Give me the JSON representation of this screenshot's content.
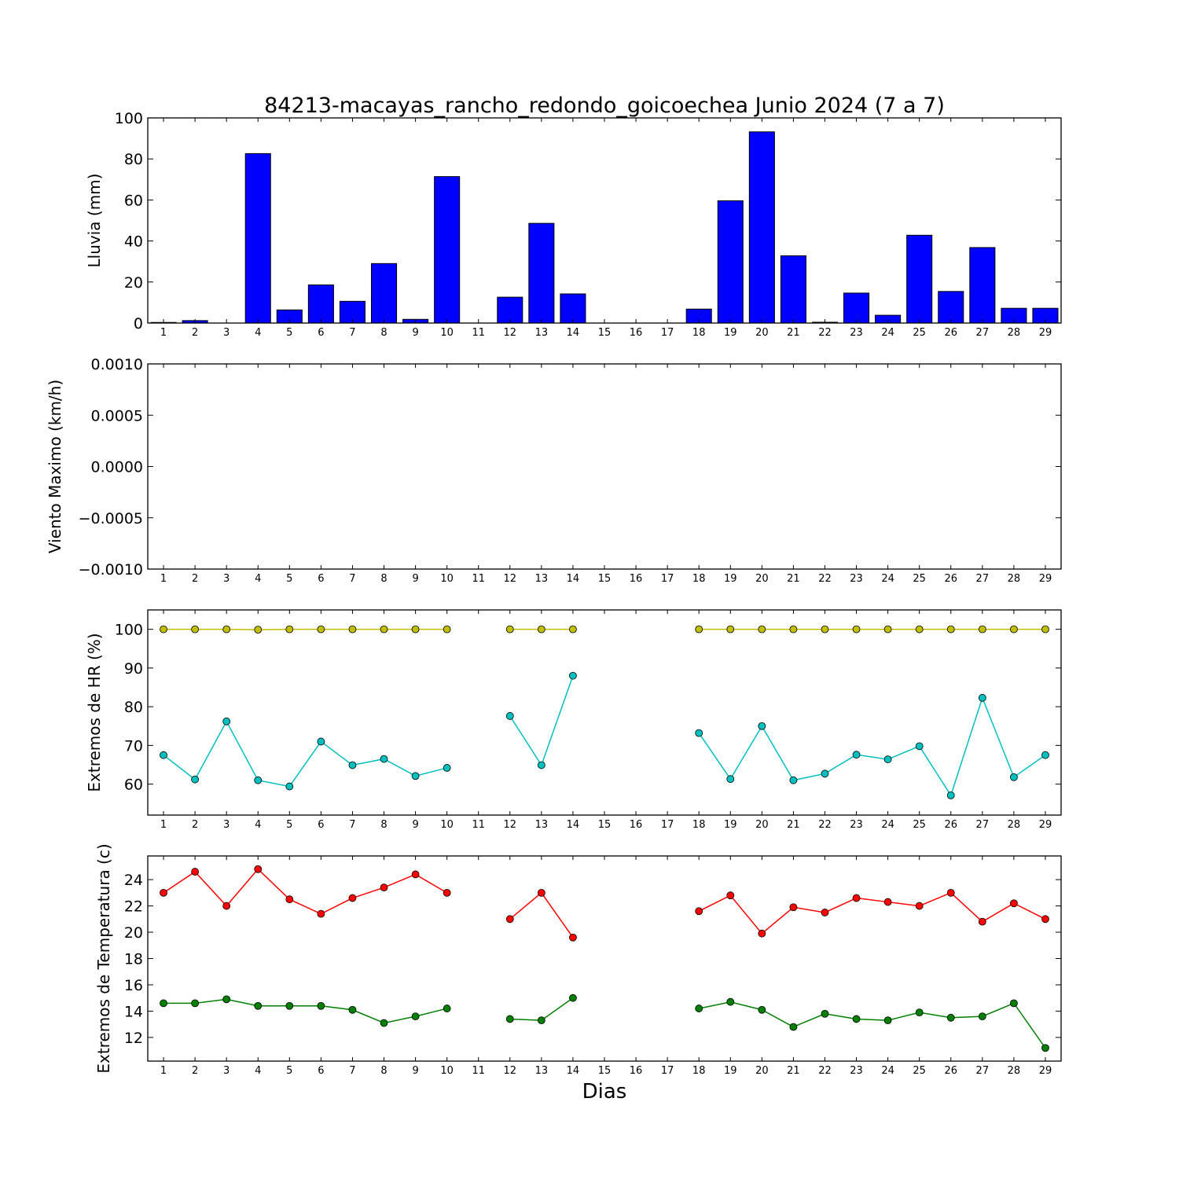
{
  "chart_data": [
    {
      "type": "bar",
      "title": "84213-macayas_rancho_redondo_goicoechea Junio 2024  (7 a 7)",
      "ylabel": "Lluvia (mm)",
      "xlabel": "",
      "categories": [
        "1",
        "2",
        "3",
        "4",
        "5",
        "6",
        "7",
        "8",
        "9",
        "10",
        "11",
        "12",
        "13",
        "14",
        "15",
        "16",
        "17",
        "18",
        "19",
        "20",
        "21",
        "22",
        "23",
        "24",
        "25",
        "26",
        "27",
        "28",
        "29"
      ],
      "values": [
        0.3,
        1.2,
        0,
        82.6,
        6.4,
        18.6,
        10.6,
        29.0,
        1.8,
        71.4,
        0,
        12.6,
        48.6,
        14.2,
        0,
        0,
        0,
        6.8,
        59.6,
        93.2,
        32.8,
        0.4,
        14.6,
        3.8,
        42.8,
        15.4,
        36.8,
        7.2,
        7.2
      ],
      "ylim": [
        0,
        100
      ],
      "yticks": [
        "0",
        "20",
        "40",
        "60",
        "80",
        "100"
      ],
      "color": "#0000ff"
    },
    {
      "type": "line",
      "ylabel": "Viento Maximo (km/h)",
      "categories": [
        "1",
        "2",
        "3",
        "4",
        "5",
        "6",
        "7",
        "8",
        "9",
        "10",
        "11",
        "12",
        "13",
        "14",
        "15",
        "16",
        "17",
        "18",
        "19",
        "20",
        "21",
        "22",
        "23",
        "24",
        "25",
        "26",
        "27",
        "28",
        "29"
      ],
      "series": [],
      "ylim": [
        -0.001,
        0.001
      ],
      "yticks": [
        "−0.0010",
        "−0.0005",
        "0.0000",
        "0.0005",
        "0.0010"
      ]
    },
    {
      "type": "line",
      "ylabel": "Extremos de HR (%)",
      "categories": [
        "1",
        "2",
        "3",
        "4",
        "5",
        "6",
        "7",
        "8",
        "9",
        "10",
        "11",
        "12",
        "13",
        "14",
        "15",
        "16",
        "17",
        "18",
        "19",
        "20",
        "21",
        "22",
        "23",
        "24",
        "25",
        "26",
        "27",
        "28",
        "29"
      ],
      "ylim": [
        52,
        105
      ],
      "yticks": [
        "60",
        "70",
        "80",
        "90",
        "100"
      ],
      "series": [
        {
          "color": "#bfbf00",
          "values": [
            100,
            100,
            100,
            99.9,
            100,
            100,
            100,
            100,
            100,
            100,
            null,
            100,
            100,
            100,
            null,
            null,
            null,
            100,
            100,
            100,
            100,
            100,
            100,
            100,
            100,
            100,
            100,
            100,
            100
          ]
        },
        {
          "color": "#00bfbf",
          "values": [
            67.5,
            61.2,
            76.2,
            61.0,
            59.4,
            71.0,
            64.9,
            66.5,
            62.1,
            64.2,
            null,
            77.6,
            64.9,
            88.0,
            null,
            null,
            null,
            73.2,
            61.3,
            75.0,
            61.0,
            62.7,
            67.6,
            66.4,
            69.8,
            57.1,
            82.3,
            61.8,
            67.5
          ]
        }
      ]
    },
    {
      "type": "line",
      "ylabel": "Extremos de Temperatura (c)",
      "xlabel": "Dias",
      "categories": [
        "1",
        "2",
        "3",
        "4",
        "5",
        "6",
        "7",
        "8",
        "9",
        "10",
        "11",
        "12",
        "13",
        "14",
        "15",
        "16",
        "17",
        "18",
        "19",
        "20",
        "21",
        "22",
        "23",
        "24",
        "25",
        "26",
        "27",
        "28",
        "29"
      ],
      "ylim": [
        10.2,
        25.8
      ],
      "yticks": [
        "12",
        "14",
        "16",
        "18",
        "20",
        "22",
        "24"
      ],
      "series": [
        {
          "color": "#ff0000",
          "values": [
            23.0,
            24.6,
            22.0,
            24.8,
            22.5,
            21.4,
            22.6,
            23.4,
            24.4,
            23.0,
            null,
            21.0,
            23.0,
            19.6,
            null,
            null,
            null,
            21.6,
            22.8,
            19.9,
            21.9,
            21.5,
            22.6,
            22.3,
            22.0,
            23.0,
            20.8,
            22.2,
            21.0
          ]
        },
        {
          "color": "#007f00",
          "values": [
            14.6,
            14.6,
            14.9,
            14.4,
            14.4,
            14.4,
            14.1,
            13.1,
            13.6,
            14.2,
            null,
            13.4,
            13.3,
            15.0,
            null,
            null,
            null,
            14.2,
            14.7,
            14.1,
            12.8,
            13.8,
            13.4,
            13.3,
            13.9,
            13.5,
            13.6,
            14.6,
            11.2
          ]
        }
      ]
    }
  ]
}
